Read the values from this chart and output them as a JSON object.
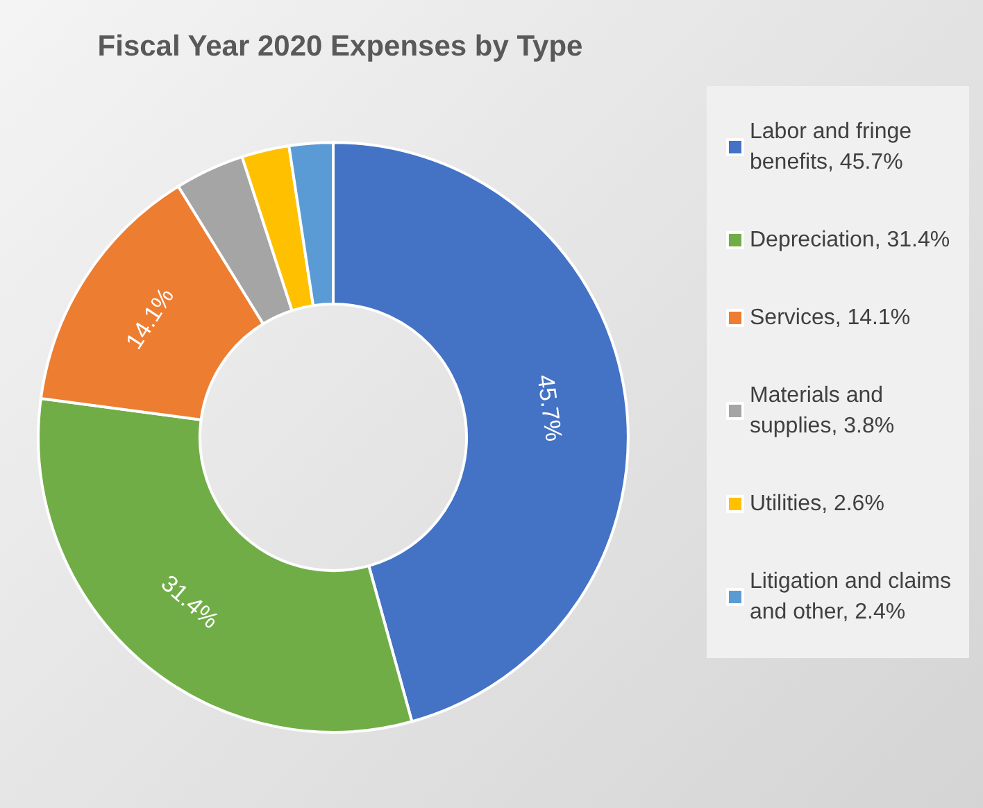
{
  "chart_data": {
    "type": "donut",
    "title": "Fiscal Year 2020 Expenses by Type",
    "categories": [
      "Labor and fringe benefits, 45.7%",
      "Depreciation, 31.4%",
      "Services, 14.1%",
      "Materials and supplies, 3.8%",
      "Utilities, 2.6%",
      "Litigation and claims and other, 2.4%"
    ],
    "values": [
      45.7,
      31.4,
      14.1,
      3.8,
      2.6,
      2.4
    ],
    "colors": [
      "#4472c4",
      "#70ad47",
      "#ed7d31",
      "#a5a5a5",
      "#ffc000",
      "#5b9bd5"
    ],
    "value_labels": [
      "45.7%",
      "31.4%",
      "14.1%",
      null,
      null,
      null
    ],
    "legend": "right"
  }
}
